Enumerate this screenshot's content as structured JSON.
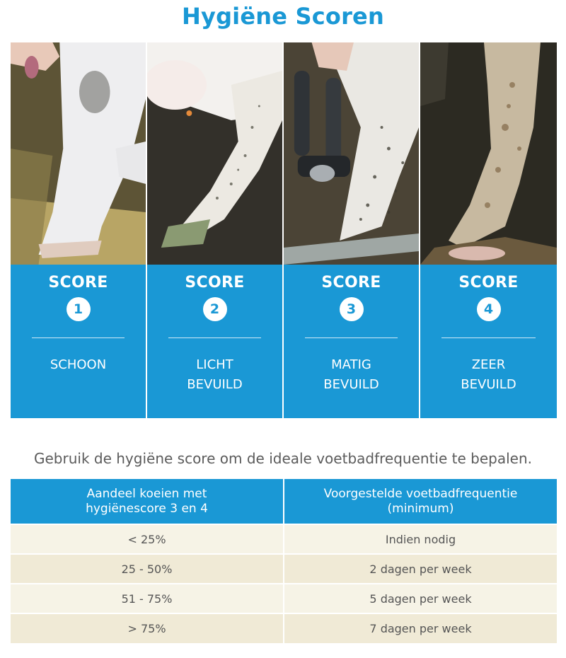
{
  "title": "Hygiëne Scoren",
  "scores": [
    {
      "word": "SCORE",
      "number": "1",
      "desc": [
        "SCHOON"
      ]
    },
    {
      "word": "SCORE",
      "number": "2",
      "desc": [
        "LICHT",
        "BEVUILD"
      ]
    },
    {
      "word": "SCORE",
      "number": "3",
      "desc": [
        "MATIG",
        "BEVUILD"
      ]
    },
    {
      "word": "SCORE",
      "number": "4",
      "desc": [
        "ZEER",
        "BEVUILD"
      ]
    }
  ],
  "intro": "Gebruik de hygiëne score om de ideale voetbadfrequentie te bepalen.",
  "table": {
    "headers": [
      [
        "Aandeel koeien met",
        "hygiënescore 3 en 4"
      ],
      [
        "Voorgestelde voetbadfrequentie",
        "(minimum)"
      ]
    ],
    "rows": [
      [
        "< 25%",
        "Indien nodig"
      ],
      [
        "25 - 50%",
        "2 dagen per week"
      ],
      [
        "51 - 75%",
        "5 dagen per week"
      ],
      [
        "> 75%",
        "7 dagen per week"
      ]
    ]
  },
  "colors": {
    "accent": "#1a98d5",
    "row_light": "#f6f3e6",
    "row_dark": "#f0ead6"
  }
}
